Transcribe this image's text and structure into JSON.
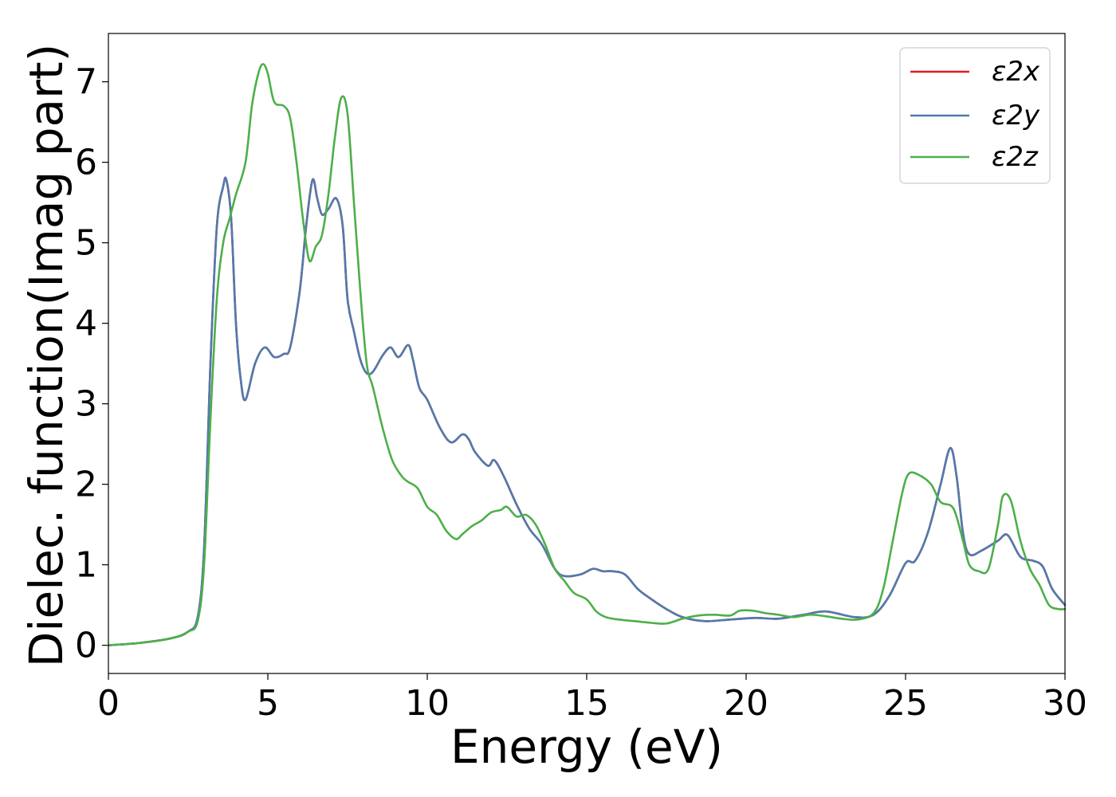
{
  "chart_data": {
    "type": "line",
    "title": "",
    "xlabel": "Energy (eV)",
    "ylabel": "Dielec. function(Imag part)",
    "xlim": [
      0,
      30
    ],
    "ylim": [
      -0.35,
      7.6
    ],
    "xticks": [
      0,
      5,
      10,
      15,
      20,
      25,
      30
    ],
    "yticks": [
      0,
      1,
      2,
      3,
      4,
      5,
      6,
      7
    ],
    "grid": false,
    "legend_position": "top-right",
    "series": [
      {
        "name": "ε2x",
        "color": "#e41a1c",
        "x": [
          0,
          1,
          2,
          2.5,
          2.8,
          3.0,
          3.2,
          3.4,
          3.6,
          3.7,
          3.85,
          4.0,
          4.15,
          4.3,
          4.6,
          4.9,
          5.2,
          5.5,
          5.7,
          6.0,
          6.2,
          6.4,
          6.55,
          6.7,
          6.9,
          7.15,
          7.35,
          7.5,
          7.7,
          7.9,
          8.1,
          8.3,
          8.6,
          8.85,
          9.1,
          9.4,
          9.55,
          9.75,
          10.0,
          10.4,
          10.75,
          11.1,
          11.3,
          11.5,
          11.9,
          12.1,
          12.4,
          12.8,
          13.2,
          13.6,
          14.0,
          14.3,
          14.8,
          15.2,
          15.5,
          15.8,
          16.2,
          16.6,
          17.0,
          17.5,
          18.0,
          18.7,
          19.5,
          20.3,
          21.0,
          21.8,
          22.5,
          23.4,
          24.0,
          24.5,
          25.0,
          25.3,
          25.7,
          26.1,
          26.4,
          26.6,
          26.8,
          27.0,
          27.4,
          27.9,
          28.2,
          28.6,
          29.0,
          29.3,
          29.6,
          30.0
        ],
        "y": [
          0,
          0.03,
          0.09,
          0.17,
          0.35,
          1.2,
          3.5,
          5.2,
          5.7,
          5.78,
          5.3,
          4.0,
          3.3,
          3.05,
          3.5,
          3.7,
          3.58,
          3.62,
          3.7,
          4.4,
          5.2,
          5.78,
          5.55,
          5.35,
          5.42,
          5.55,
          5.2,
          4.3,
          3.9,
          3.55,
          3.38,
          3.4,
          3.6,
          3.7,
          3.58,
          3.73,
          3.55,
          3.2,
          3.05,
          2.7,
          2.52,
          2.62,
          2.56,
          2.4,
          2.23,
          2.3,
          2.1,
          1.75,
          1.45,
          1.25,
          0.95,
          0.86,
          0.88,
          0.95,
          0.92,
          0.92,
          0.88,
          0.7,
          0.58,
          0.45,
          0.35,
          0.3,
          0.32,
          0.34,
          0.33,
          0.38,
          0.42,
          0.35,
          0.38,
          0.62,
          1.02,
          1.05,
          1.4,
          2.0,
          2.45,
          2.1,
          1.4,
          1.13,
          1.18,
          1.3,
          1.37,
          1.1,
          1.05,
          0.98,
          0.7,
          0.5
        ]
      },
      {
        "name": "ε2y",
        "color": "#4f7bad",
        "x": [
          0,
          1,
          2,
          2.5,
          2.8,
          3.0,
          3.2,
          3.4,
          3.6,
          3.7,
          3.85,
          4.0,
          4.15,
          4.3,
          4.6,
          4.9,
          5.2,
          5.5,
          5.7,
          6.0,
          6.2,
          6.4,
          6.55,
          6.7,
          6.9,
          7.15,
          7.35,
          7.5,
          7.7,
          7.9,
          8.1,
          8.3,
          8.6,
          8.85,
          9.1,
          9.4,
          9.55,
          9.75,
          10.0,
          10.4,
          10.75,
          11.1,
          11.3,
          11.5,
          11.9,
          12.1,
          12.4,
          12.8,
          13.2,
          13.6,
          14.0,
          14.3,
          14.8,
          15.2,
          15.5,
          15.8,
          16.2,
          16.6,
          17.0,
          17.5,
          18.0,
          18.7,
          19.5,
          20.3,
          21.0,
          21.8,
          22.5,
          23.4,
          24.0,
          24.5,
          25.0,
          25.3,
          25.7,
          26.1,
          26.4,
          26.6,
          26.8,
          27.0,
          27.4,
          27.9,
          28.2,
          28.6,
          29.0,
          29.3,
          29.6,
          30.0
        ],
        "y": [
          0,
          0.03,
          0.09,
          0.17,
          0.35,
          1.2,
          3.5,
          5.2,
          5.7,
          5.78,
          5.3,
          4.0,
          3.3,
          3.05,
          3.5,
          3.7,
          3.58,
          3.62,
          3.7,
          4.4,
          5.2,
          5.78,
          5.55,
          5.35,
          5.42,
          5.55,
          5.2,
          4.3,
          3.9,
          3.55,
          3.38,
          3.4,
          3.6,
          3.7,
          3.58,
          3.73,
          3.55,
          3.2,
          3.05,
          2.7,
          2.52,
          2.62,
          2.56,
          2.4,
          2.23,
          2.3,
          2.1,
          1.75,
          1.45,
          1.25,
          0.95,
          0.86,
          0.88,
          0.95,
          0.92,
          0.92,
          0.88,
          0.7,
          0.58,
          0.45,
          0.35,
          0.3,
          0.32,
          0.34,
          0.33,
          0.38,
          0.42,
          0.35,
          0.38,
          0.62,
          1.02,
          1.05,
          1.4,
          2.0,
          2.45,
          2.1,
          1.4,
          1.13,
          1.18,
          1.3,
          1.37,
          1.1,
          1.05,
          0.98,
          0.7,
          0.5
        ]
      },
      {
        "name": "ε2z",
        "color": "#4daf4a",
        "x": [
          0,
          1,
          2,
          2.5,
          2.8,
          3.0,
          3.2,
          3.4,
          3.6,
          3.8,
          4.0,
          4.3,
          4.5,
          4.7,
          4.85,
          5.0,
          5.2,
          5.5,
          5.7,
          5.9,
          6.1,
          6.3,
          6.5,
          6.7,
          6.9,
          7.1,
          7.3,
          7.5,
          7.7,
          7.9,
          8.1,
          8.3,
          8.6,
          8.9,
          9.2,
          9.4,
          9.7,
          10.0,
          10.3,
          10.6,
          10.9,
          11.1,
          11.4,
          11.7,
          12.0,
          12.3,
          12.5,
          12.8,
          13.1,
          13.4,
          13.7,
          14.0,
          14.3,
          14.6,
          15.0,
          15.3,
          15.6,
          16.0,
          16.5,
          17.0,
          17.5,
          18.0,
          18.5,
          19.0,
          19.5,
          19.8,
          20.2,
          20.6,
          21.0,
          21.5,
          22.0,
          22.5,
          23.0,
          23.5,
          24.0,
          24.3,
          24.6,
          24.9,
          25.1,
          25.4,
          25.8,
          26.1,
          26.5,
          26.8,
          27.0,
          27.3,
          27.6,
          27.9,
          28.05,
          28.3,
          28.6,
          28.9,
          29.2,
          29.5,
          29.8,
          30.0
        ],
        "y": [
          0,
          0.03,
          0.09,
          0.17,
          0.3,
          1.0,
          2.8,
          4.3,
          5.0,
          5.3,
          5.6,
          6.0,
          6.7,
          7.1,
          7.22,
          7.1,
          6.75,
          6.7,
          6.55,
          6.0,
          5.3,
          4.78,
          4.95,
          5.1,
          5.6,
          6.3,
          6.8,
          6.6,
          5.5,
          4.4,
          3.5,
          3.2,
          2.7,
          2.3,
          2.1,
          2.03,
          1.95,
          1.72,
          1.62,
          1.42,
          1.32,
          1.38,
          1.48,
          1.55,
          1.65,
          1.68,
          1.72,
          1.6,
          1.62,
          1.5,
          1.25,
          0.95,
          0.8,
          0.65,
          0.57,
          0.42,
          0.35,
          0.32,
          0.3,
          0.28,
          0.27,
          0.33,
          0.37,
          0.38,
          0.37,
          0.43,
          0.43,
          0.4,
          0.38,
          0.35,
          0.38,
          0.36,
          0.33,
          0.32,
          0.4,
          0.7,
          1.3,
          1.9,
          2.13,
          2.12,
          2.0,
          1.78,
          1.7,
          1.3,
          1.0,
          0.92,
          0.95,
          1.5,
          1.85,
          1.8,
          1.3,
          0.95,
          0.75,
          0.5,
          0.45,
          0.45
        ]
      }
    ]
  }
}
